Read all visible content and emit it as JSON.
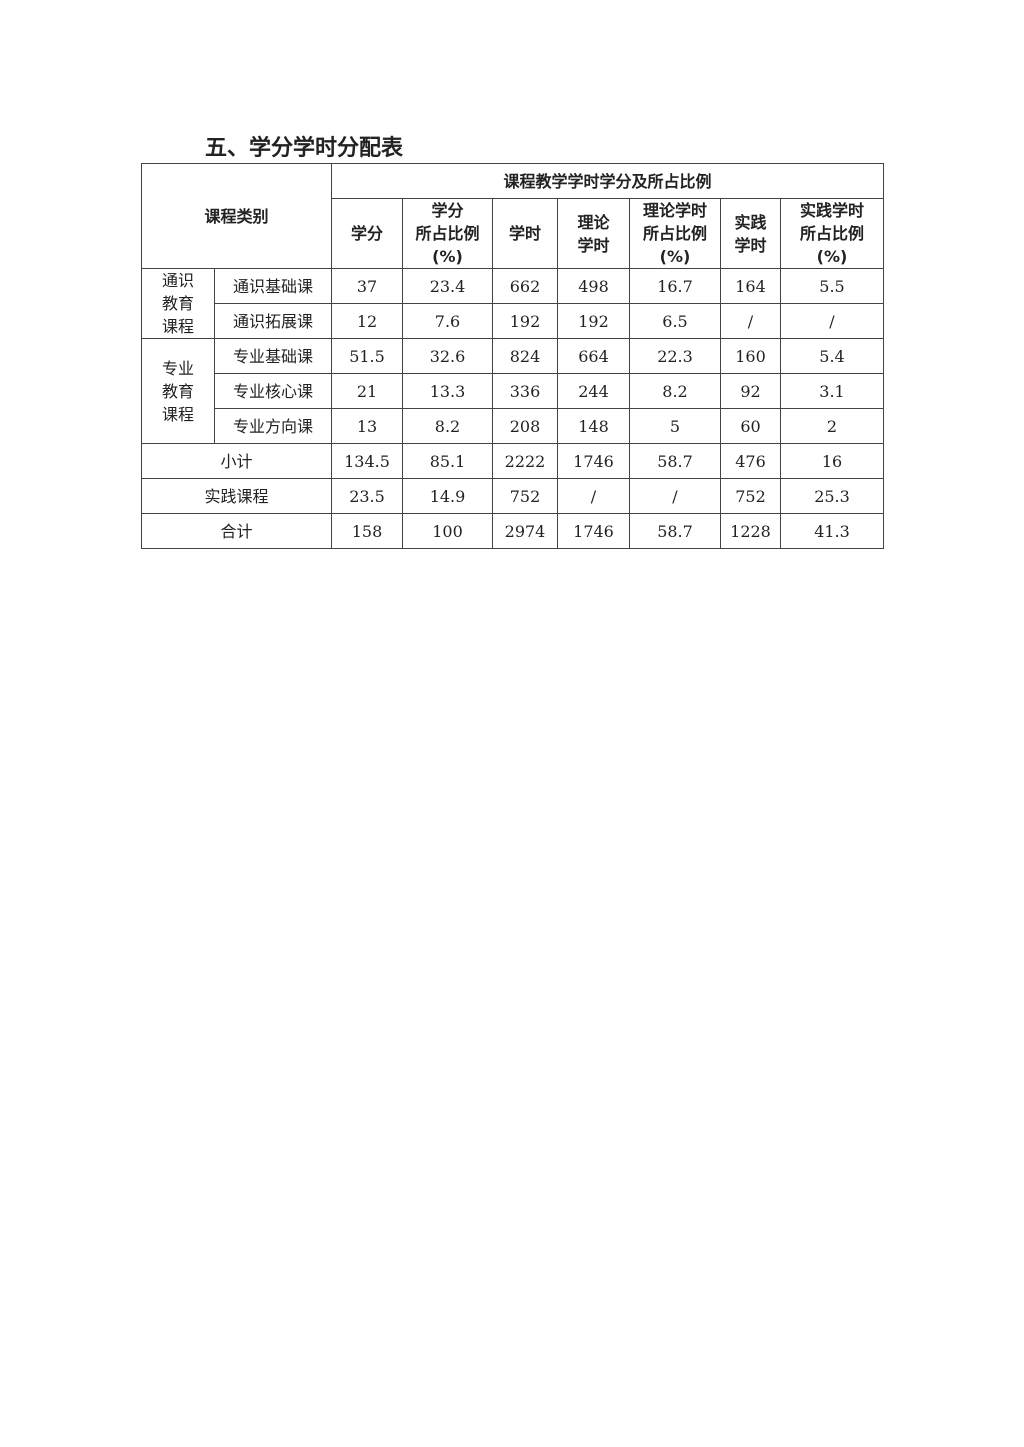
{
  "title": "五、学分学时分配表",
  "table": {
    "category_header": "课程类别",
    "group_header": "课程教学学时学分及所占比例",
    "columns": [
      "学分",
      "学分\n所占比例\n(%)",
      "学时",
      "理论\n学时",
      "理论学时\n所占比例\n(%)",
      "实践\n学时",
      "实践学时\n所占比例\n(%)"
    ],
    "groups": [
      {
        "name": "通识\n教育\n课程",
        "rows": [
          {
            "label": "通识基础课",
            "values": [
              "37",
              "23.4",
              "662",
              "498",
              "16.7",
              "164",
              "5.5"
            ]
          },
          {
            "label": "通识拓展课",
            "values": [
              "12",
              "7.6",
              "192",
              "192",
              "6.5",
              "/",
              "/"
            ]
          }
        ]
      },
      {
        "name": "专业\n教育\n课程",
        "rows": [
          {
            "label": "专业基础课",
            "values": [
              "51.5",
              "32.6",
              "824",
              "664",
              "22.3",
              "160",
              "5.4"
            ]
          },
          {
            "label": "专业核心课",
            "values": [
              "21",
              "13.3",
              "336",
              "244",
              "8.2",
              "92",
              "3.1"
            ]
          },
          {
            "label": "专业方向课",
            "values": [
              "13",
              "8.2",
              "208",
              "148",
              "5",
              "60",
              "2"
            ]
          }
        ]
      }
    ],
    "summary_rows": [
      {
        "label": "小计",
        "values": [
          "134.5",
          "85.1",
          "2222",
          "1746",
          "58.7",
          "476",
          "16"
        ]
      },
      {
        "label": "实践课程",
        "values": [
          "23.5",
          "14.9",
          "752",
          "/",
          "/",
          "752",
          "25.3"
        ]
      },
      {
        "label": "合计",
        "values": [
          "158",
          "100",
          "2974",
          "1746",
          "58.7",
          "1228",
          "41.3"
        ]
      }
    ]
  }
}
